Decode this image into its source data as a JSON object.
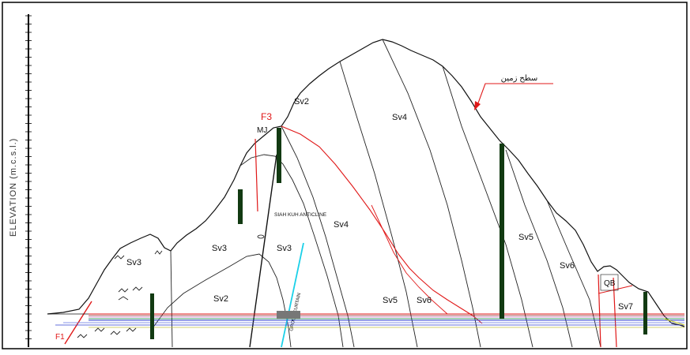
{
  "axis": {
    "label": "ELEVATION (m.c.s.l.)"
  },
  "labels": {
    "unit_sv2_top": "Sv2",
    "unit_sv4_top": "Sv4",
    "unit_sv3_left": "Sv3",
    "unit_sv3_mid": "Sv3",
    "unit_sv3_far_left": "Sv3",
    "unit_sv2_bottom": "Sv2",
    "unit_sv4_mid": "Sv4",
    "unit_sv5_right": "Sv5",
    "unit_sv6": "Sv6",
    "unit_sv5_bottom": "Sv5",
    "unit_sv6_bottom": "Sv6",
    "unit_sv7": "Sv7",
    "unit_qb": "QB",
    "fault_f3": "F3",
    "fault_f1": "F1",
    "marker_mj": "MJ",
    "anticline": "SIAH KUH ANTICLINE",
    "curtain": "GROUT CURTAIN",
    "surface_label": "سطح زمین"
  },
  "colors": {
    "fault": "#e01818",
    "curtain": "#1ad0e8",
    "borehole": "#123a12",
    "ink": "#111111"
  }
}
